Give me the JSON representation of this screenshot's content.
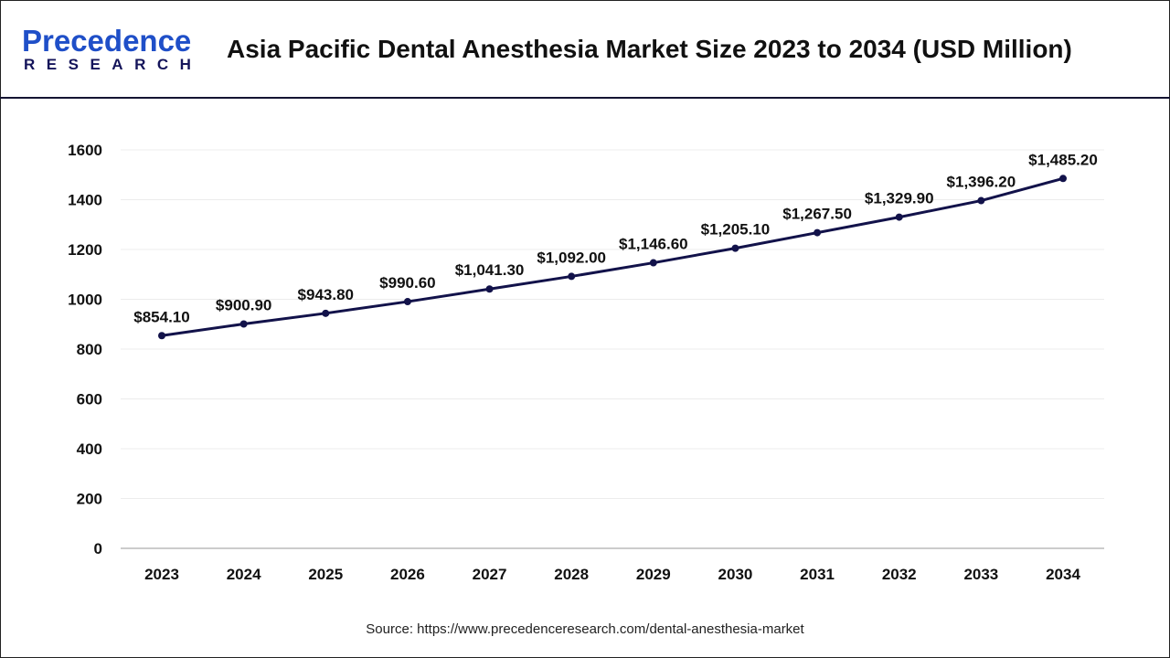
{
  "header": {
    "logo_text": "Precedence",
    "logo_subtext": "RESEARCH",
    "title": "Asia Pacific Dental Anesthesia Market Size 2023 to 2034 (USD Million)"
  },
  "chart_data": {
    "type": "line",
    "title": "Asia Pacific Dental Anesthesia Market Size 2023 to 2034 (USD Million)",
    "categories": [
      "2023",
      "2024",
      "2025",
      "2026",
      "2027",
      "2028",
      "2029",
      "2030",
      "2031",
      "2032",
      "2033",
      "2034"
    ],
    "values": [
      854.1,
      900.9,
      943.8,
      990.6,
      1041.3,
      1092.0,
      1146.6,
      1205.1,
      1267.5,
      1329.9,
      1396.2,
      1485.2
    ],
    "data_labels": [
      "$854.10",
      "$900.90",
      "$943.80",
      "$990.60",
      "$1,041.30",
      "$1,092.00",
      "$1,146.60",
      "$1,205.10",
      "$1,267.50",
      "$1,329.90",
      "$1,396.20",
      "$1,485.20"
    ],
    "y_ticks": [
      "0",
      "200",
      "400",
      "600",
      "800",
      "1000",
      "1200",
      "1400",
      "1600"
    ],
    "ylim": [
      0,
      1600
    ],
    "xlabel": "",
    "ylabel": "",
    "grid": true,
    "line_color": "#12124a"
  },
  "source": "Source: https://www.precedenceresearch.com/dental-anesthesia-market"
}
